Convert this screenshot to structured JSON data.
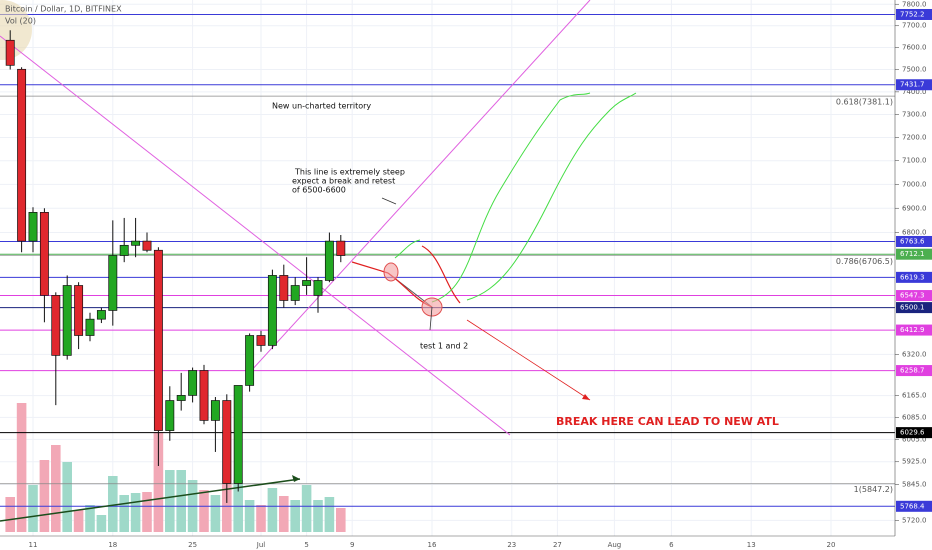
{
  "chart_data": {
    "type": "candlestick",
    "title": "Bitcoin / Dollar, 1D, BITFINEX",
    "subtitle": "Vol (20)",
    "log": true,
    "grid": true,
    "ylim": [
      5680,
      7820
    ],
    "yticks": [
      {
        "value": 7800,
        "label": "7800.0"
      },
      {
        "value": 7700,
        "label": "7700.0"
      },
      {
        "value": 7600,
        "label": "7600.0"
      },
      {
        "value": 7500,
        "label": "7500.0"
      },
      {
        "value": 7400,
        "label": "7400.0"
      },
      {
        "value": 7300,
        "label": "7300.0"
      },
      {
        "value": 7200,
        "label": "7200.0"
      },
      {
        "value": 7100,
        "label": "7100.0"
      },
      {
        "value": 7000,
        "label": "7000.0"
      },
      {
        "value": 6900,
        "label": "6900.0"
      },
      {
        "value": 6800,
        "label": "6800.0"
      },
      {
        "value": 6320,
        "label": "6320.0"
      },
      {
        "value": 6165,
        "label": "6165.0"
      },
      {
        "value": 6085,
        "label": "6085.0"
      },
      {
        "value": 6005,
        "label": "6005.0"
      },
      {
        "value": 5925,
        "label": "5925.0"
      },
      {
        "value": 5845,
        "label": "5845.0"
      },
      {
        "value": 5720,
        "label": "5720.0"
      }
    ],
    "categories": [
      null,
      null,
      "11",
      null,
      null,
      null,
      null,
      null,
      null,
      "18",
      null,
      null,
      null,
      null,
      null,
      null,
      "25",
      null,
      null,
      null,
      null,
      null,
      "Jul",
      null,
      null,
      null,
      "5",
      null,
      null,
      null,
      "9",
      null,
      null,
      null,
      null,
      null,
      null,
      "16",
      null,
      null,
      null,
      null,
      null,
      null,
      "23",
      null,
      null,
      null,
      "27",
      null,
      null,
      null,
      null,
      "Aug",
      null,
      null,
      null,
      null,
      "6",
      null,
      null,
      null,
      null,
      null,
      null,
      "13",
      null,
      null,
      null,
      null,
      null,
      null,
      "20",
      null,
      null,
      null,
      null,
      null
    ],
    "up_color": "#22a722",
    "down_color": "#e0282e",
    "open": [
      7633,
      7501,
      6765,
      6883,
      6548,
      6316,
      6587,
      6392,
      6455,
      6489,
      6707,
      6748,
      6765,
      6728,
      6037,
      6147,
      6166,
      6259,
      6074,
      6147,
      5848,
      6203,
      6392,
      6354,
      6627,
      6528,
      6587,
      6548,
      6607,
      6765,
      null,
      null,
      null,
      null,
      null,
      null,
      null,
      null,
      null,
      null,
      null,
      null,
      null,
      null,
      null,
      null,
      null,
      null,
      null,
      null,
      null,
      null,
      null,
      null,
      null,
      null,
      null,
      null,
      null,
      null,
      null,
      null,
      null,
      null,
      null,
      null,
      null,
      null,
      null,
      null,
      null,
      null,
      null,
      null,
      null,
      null,
      null,
      null
    ],
    "high": [
      7679,
      7510,
      6904,
      6900,
      6560,
      6627,
      6600,
      6480,
      6500,
      6850,
      6860,
      6860,
      6800,
      6740,
      6200,
      6250,
      6270,
      6280,
      6160,
      6170,
      6200,
      6400,
      6410,
      6650,
      6670,
      6620,
      6700,
      6620,
      6800,
      6790,
      null,
      null,
      null,
      null,
      null,
      null,
      null,
      null,
      null,
      null,
      null,
      null,
      null,
      null,
      null,
      null,
      null,
      null,
      null,
      null,
      null,
      null,
      null,
      null,
      null,
      null,
      null,
      null,
      null,
      null,
      null,
      null,
      null,
      null,
      null,
      null,
      null,
      null,
      null,
      null,
      null,
      null,
      null,
      null,
      null,
      null,
      null,
      null
    ],
    "low": [
      7500,
      6720,
      6720,
      6443,
      6130,
      6300,
      6340,
      6370,
      6440,
      6430,
      6680,
      6700,
      6720,
      5910,
      6000,
      6110,
      6140,
      6060,
      5960,
      5780,
      5820,
      6180,
      6330,
      6340,
      6500,
      6510,
      6550,
      6480,
      6600,
      6680,
      null,
      null,
      null,
      null,
      null,
      null,
      null,
      null,
      null,
      null,
      null,
      null,
      null,
      null,
      null,
      null,
      null,
      null,
      null,
      null,
      null,
      null,
      null,
      null,
      null,
      null,
      null,
      null,
      null,
      null,
      null,
      null,
      null,
      null,
      null,
      null,
      null,
      null,
      null,
      null,
      null,
      null,
      null,
      null,
      null,
      null,
      null,
      null
    ],
    "close": [
      7519,
      6765,
      6883,
      6548,
      6316,
      6587,
      6392,
      6455,
      6489,
      6707,
      6748,
      6765,
      6728,
      6037,
      6147,
      6166,
      6259,
      6074,
      6147,
      5848,
      6203,
      6392,
      6354,
      6627,
      6528,
      6587,
      6607,
      6607,
      6765,
      6707,
      null,
      null,
      null,
      null,
      null,
      null,
      null,
      null,
      null,
      null,
      null,
      null,
      null,
      null,
      null,
      null,
      null,
      null,
      null,
      null,
      null,
      null,
      null,
      null,
      null,
      null,
      null,
      null,
      null,
      null,
      null,
      null,
      null,
      null,
      null,
      null,
      null,
      null,
      null,
      null,
      null,
      null,
      null,
      null,
      null,
      null,
      null,
      null
    ],
    "volume": [
      35,
      129,
      47,
      72,
      87,
      70,
      22,
      27,
      17,
      56,
      37,
      39,
      40,
      100,
      62,
      62,
      52,
      42,
      37,
      102,
      52,
      32,
      27,
      44,
      36,
      32,
      47,
      32,
      35,
      24,
      null,
      null,
      null,
      null,
      null,
      null,
      null,
      null,
      null,
      null,
      null,
      null,
      null,
      null,
      null,
      null,
      null,
      null,
      null,
      null,
      null,
      null,
      null,
      null,
      null,
      null,
      null,
      null,
      null,
      null,
      null,
      null,
      null,
      null,
      null,
      null,
      null,
      null,
      null,
      null,
      null,
      null,
      null,
      null,
      null,
      null,
      null,
      null
    ],
    "volume_ylim": [
      0,
      140
    ],
    "volume_up_color": "#9fd9c9",
    "volume_down_color": "#f2a8b6",
    "levels": {
      "values": [
        7752.2,
        7431.7,
        6763.6,
        6712.1,
        6619.3,
        6547.3,
        6500.1,
        6412.9,
        6258.7,
        6029.6,
        5768.4
      ],
      "colors": [
        "#3a3ad8",
        "#3a3ad8",
        "#3a3ad8",
        "#4caf50",
        "#3a3ad8",
        "#e040e0",
        "#1a237e",
        "#e040e0",
        "#e040e0",
        "#000000",
        "#3a3ad8"
      ]
    },
    "fib_levels": [
      {
        "value": 7381.1,
        "label": "0.618(7381.1)"
      },
      {
        "value": 6706.5,
        "label": "0.786(6706.5)"
      },
      {
        "value": 5847.2,
        "label": "1(5847.2)"
      }
    ],
    "annotations": {
      "territory": "New un-charted territory",
      "steep": [
        "This line is extremely steep",
        "expect a break and retest",
        "of 6500-6600"
      ],
      "test": "test 1 and 2",
      "break": "BREAK HERE CAN LEAD TO NEW ATL"
    }
  }
}
